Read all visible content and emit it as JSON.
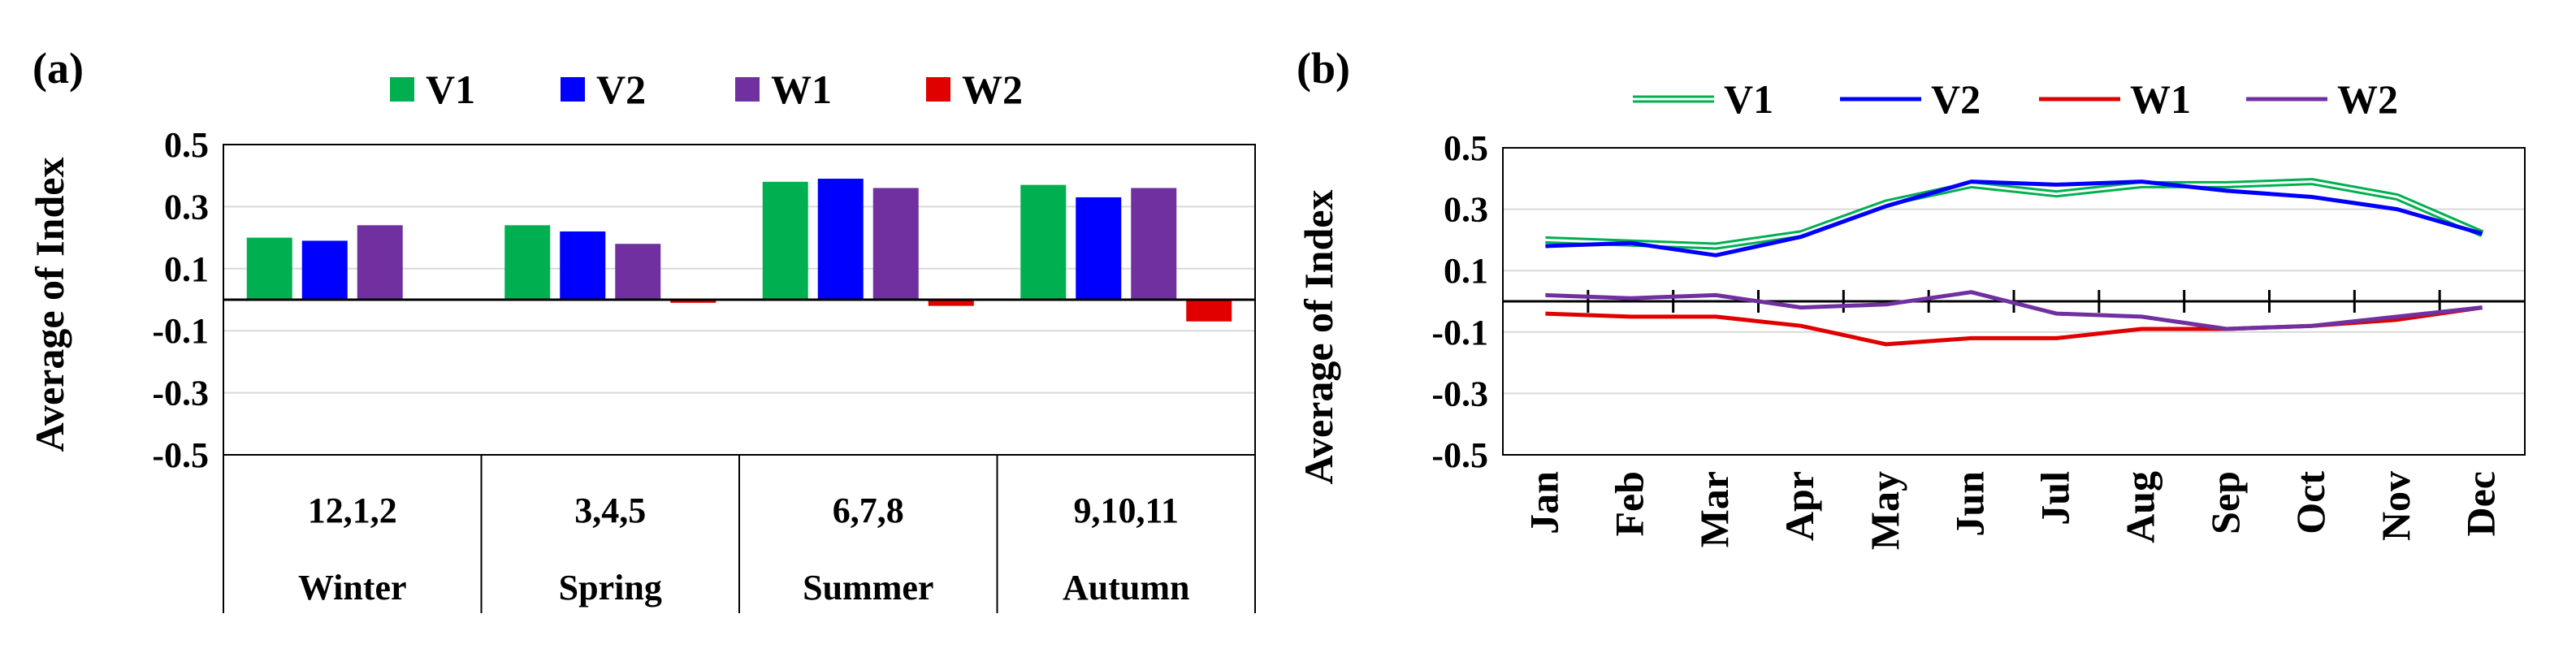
{
  "chart_data": [
    {
      "type": "bar",
      "panel": "(a)",
      "ylabel": "Average of Index",
      "ylim": [
        -0.5,
        0.5
      ],
      "yticks": [
        "0.5",
        "0.3",
        "0.1",
        "-0.1",
        "-0.3",
        "-0.5"
      ],
      "categories": [
        {
          "months": "12,1,2",
          "season": "Winter"
        },
        {
          "months": "3,4,5",
          "season": "Spring"
        },
        {
          "months": "6,7,8",
          "season": "Summer"
        },
        {
          "months": "9,10,11",
          "season": "Autumn"
        }
      ],
      "series": [
        {
          "name": "V1",
          "color": "#00B050",
          "values": [
            0.2,
            0.24,
            0.38,
            0.37
          ]
        },
        {
          "name": "V2",
          "color": "#0000FF",
          "values": [
            0.19,
            0.22,
            0.39,
            0.33
          ]
        },
        {
          "name": "W1",
          "color": "#7030A0",
          "values": [
            0.24,
            0.18,
            0.36,
            0.36
          ]
        },
        {
          "name": "W2",
          "color": "#E00000",
          "values": [
            0.0,
            -0.01,
            -0.02,
            -0.07
          ]
        }
      ]
    },
    {
      "type": "line",
      "panel": "(b)",
      "ylabel": "Average of Index",
      "ylim": [
        -0.5,
        0.5
      ],
      "yticks": [
        "0.5",
        "0.3",
        "0.1",
        "-0.1",
        "-0.3",
        "-0.5"
      ],
      "categories": [
        "Jan",
        "Feb",
        "Mar",
        "Apr",
        "May",
        "Jun",
        "Jul",
        "Aug",
        "Sep",
        "Oct",
        "Nov",
        "Dec"
      ],
      "series": [
        {
          "name": "V1",
          "color": "#00B050",
          "style": "double",
          "values": [
            0.2,
            0.19,
            0.18,
            0.22,
            0.32,
            0.38,
            0.35,
            0.38,
            0.38,
            0.39,
            0.34,
            0.22
          ]
        },
        {
          "name": "V2",
          "color": "#0000FF",
          "values": [
            0.18,
            0.19,
            0.15,
            0.21,
            0.31,
            0.39,
            0.38,
            0.39,
            0.36,
            0.34,
            0.3,
            0.22
          ]
        },
        {
          "name": "W1",
          "color": "#E00000",
          "values": [
            -0.04,
            -0.05,
            -0.05,
            -0.08,
            -0.14,
            -0.12,
            -0.12,
            -0.09,
            -0.09,
            -0.08,
            -0.06,
            -0.02
          ]
        },
        {
          "name": "W2",
          "color": "#7030A0",
          "values": [
            0.02,
            0.01,
            0.02,
            -0.02,
            -0.01,
            0.03,
            -0.04,
            -0.05,
            -0.09,
            -0.08,
            -0.05,
            -0.02
          ]
        }
      ]
    }
  ]
}
